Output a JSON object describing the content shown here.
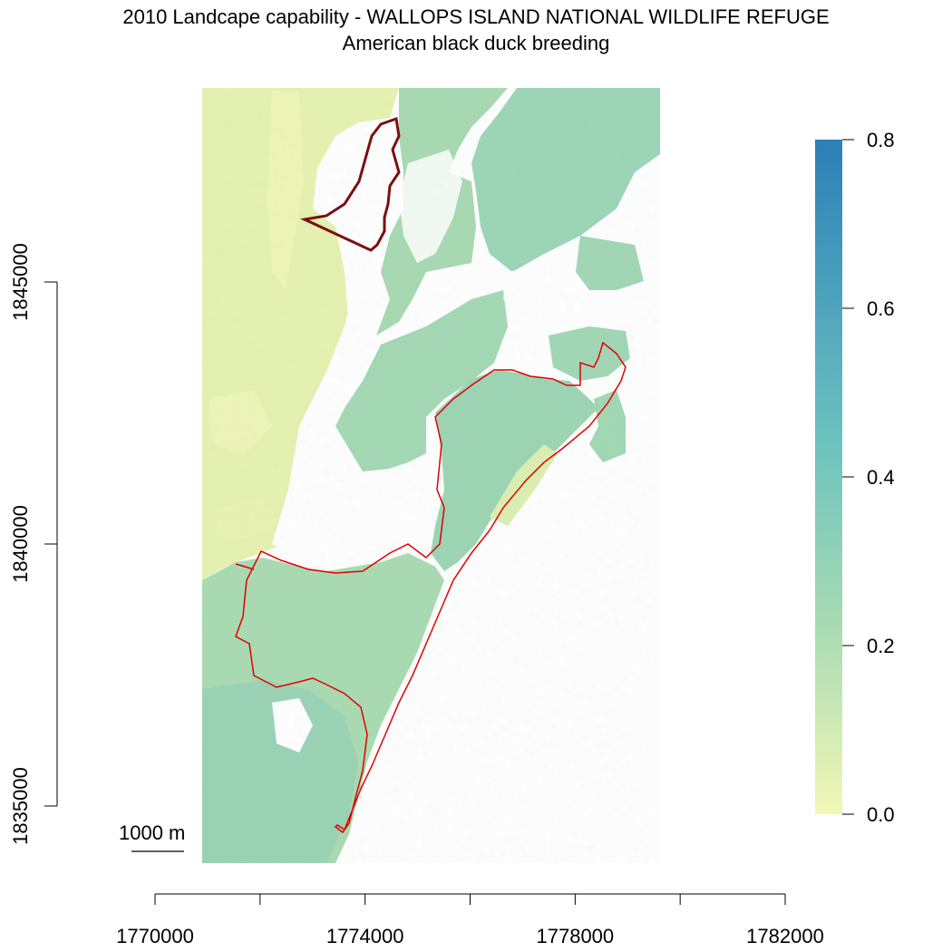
{
  "title": {
    "line1": "2010 Landcape capability - WALLOPS ISLAND NATIONAL WILDLIFE REFUGE",
    "line2": "American black duck breeding"
  },
  "map": {
    "x_axis": {
      "ticks": [
        1770000,
        1772000,
        1774000,
        1776000,
        1778000,
        1780000,
        1782000
      ],
      "labels": [
        "1770000",
        "1774000",
        "1778000",
        "1782000"
      ]
    },
    "y_axis": {
      "ticks": [
        1835000,
        1837500,
        1840000,
        1842500,
        1845000
      ],
      "labels": [
        "1835000",
        "1840000",
        "1845000"
      ]
    },
    "scale_bar": {
      "label": "1000 m",
      "length_m": 1000
    },
    "boundary_color": "#e00000",
    "boundary_north_color": "#7a1010"
  },
  "legend": {
    "min": 0.0,
    "max": 0.8,
    "ticks": [
      "0.0",
      "0.2",
      "0.4",
      "0.6",
      "0.8"
    ],
    "colors": [
      "#f1f8b6",
      "#a8dbb3",
      "#6cc3bf",
      "#2c7fb8"
    ]
  }
}
